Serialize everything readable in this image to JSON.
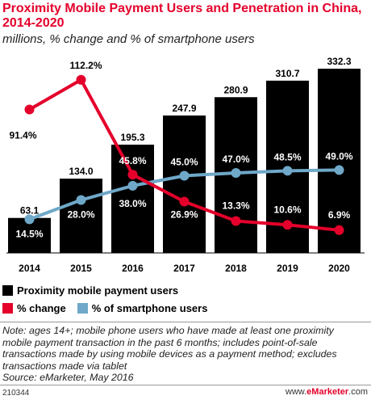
{
  "title": "Proximity Mobile Payment Users and Penetration in China, 2014-2020",
  "subtitle": "millions, % change and % of smartphone users",
  "chart_data": {
    "type": "bar",
    "categories": [
      "2014",
      "2015",
      "2016",
      "2017",
      "2018",
      "2019",
      "2020"
    ],
    "series": [
      {
        "name": "Proximity mobile payment users",
        "kind": "bar",
        "color": "#000000",
        "values": [
          63.1,
          134.0,
          195.3,
          247.9,
          280.9,
          310.7,
          332.3
        ],
        "labels": [
          "63.1",
          "134.0",
          "195.3",
          "247.9",
          "280.9",
          "310.7",
          "332.3"
        ]
      },
      {
        "name": "% change",
        "kind": "line",
        "color": "#e4002b",
        "values": [
          91.4,
          112.2,
          45.8,
          26.9,
          13.3,
          10.6,
          6.9
        ],
        "labels": [
          "91.4%",
          "112.2%",
          "45.8%",
          "26.9%",
          "13.3%",
          "10.6%",
          "6.9%"
        ]
      },
      {
        "name": "% of smartphone users",
        "kind": "line",
        "color": "#6fa8c8",
        "values": [
          14.5,
          28.0,
          38.0,
          45.0,
          47.0,
          48.5,
          49.0
        ],
        "labels": [
          "14.5%",
          "28.0%",
          "38.0%",
          "45.0%",
          "47.0%",
          "48.5%",
          "49.0%"
        ]
      }
    ],
    "grid": false
  },
  "legend": [
    {
      "label": "Proximity mobile payment users",
      "color": "#000000"
    },
    {
      "label": "% change",
      "color": "#e4002b"
    },
    {
      "label": "% of smartphone users",
      "color": "#6fa8c8"
    }
  ],
  "note": "Note: ages 14+; mobile phone users who have made at least one proximity mobile payment transaction in the past 6 months; includes point-of-sale transactions made by using mobile devices as a payment method; excludes transactions made via tablet",
  "source": "Source: eMarketer, May 2016",
  "footer": {
    "id": "210344",
    "brand_prefix": "www.",
    "brand_main": "eMarketer",
    "brand_suffix": ".com"
  }
}
